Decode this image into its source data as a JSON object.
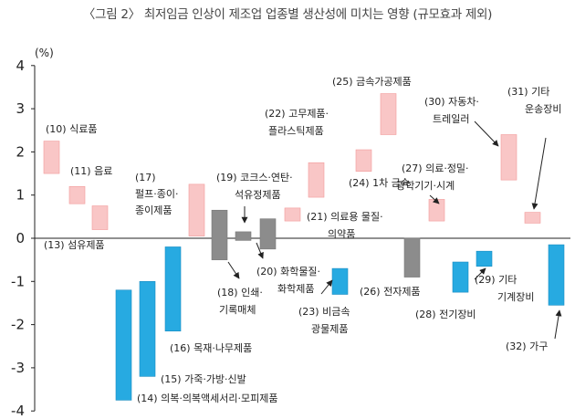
{
  "title": "〈그림 2〉 최저임금 인상이 제조업 업종별 생산성에 미치는 영향 (규모효과 제외)",
  "chart_data": {
    "type": "bar",
    "subtype": "floating-range",
    "ylabel": "(%)",
    "ylim": [
      -4,
      4
    ],
    "yticks": [
      4,
      3,
      2,
      1,
      0,
      -1,
      -2,
      -3,
      -4
    ],
    "colors": {
      "positive": "#f9c6c6",
      "negative": "#27aae1",
      "neutral": "#8c8c8c",
      "positive_border": "#f29b9b",
      "negative_border": "#1a8cc1"
    },
    "series": [
      {
        "id": 10,
        "label": [
          "(10) 식료품"
        ],
        "low": 1.5,
        "high": 2.25,
        "color": "positive"
      },
      {
        "id": 11,
        "label": [
          "(11) 음료"
        ],
        "low": 0.8,
        "high": 1.2,
        "color": "positive"
      },
      {
        "id": 13,
        "label": [
          "(13) 섬유제품"
        ],
        "low": 0.2,
        "high": 0.75,
        "color": "positive"
      },
      {
        "id": 14,
        "label": [
          "(14) 의복·의복액세서리·모피제품"
        ],
        "low": -3.75,
        "high": -1.2,
        "color": "negative"
      },
      {
        "id": 15,
        "label": [
          "(15) 가죽·가방·신발"
        ],
        "low": -3.2,
        "high": -1.0,
        "color": "negative"
      },
      {
        "id": 16,
        "label": [
          "(16) 목재·나무제품"
        ],
        "low": -2.15,
        "high": -0.2,
        "color": "negative"
      },
      {
        "id": 17,
        "label": [
          "(17)",
          "펄프·종이·",
          "종이제품"
        ],
        "low": 0.05,
        "high": 1.25,
        "color": "positive"
      },
      {
        "id": 18,
        "label": [
          "(18) 인쇄·",
          "기록매체"
        ],
        "low": -0.5,
        "high": 0.65,
        "color": "neutral"
      },
      {
        "id": 19,
        "label": [
          "(19) 코크스·연탄·",
          "석유정제품"
        ],
        "low": -0.05,
        "high": 0.15,
        "color": "neutral"
      },
      {
        "id": 20,
        "label": [
          "(20) 화학물질·",
          "화학제품"
        ],
        "low": -0.25,
        "high": 0.45,
        "color": "neutral"
      },
      {
        "id": 21,
        "label": [
          "(21) 의료용 물질·",
          "의약품"
        ],
        "low": 0.4,
        "high": 0.7,
        "color": "positive"
      },
      {
        "id": 22,
        "label": [
          "(22) 고무제품·",
          "플라스틱제품"
        ],
        "low": 0.95,
        "high": 1.75,
        "color": "positive"
      },
      {
        "id": 23,
        "label": [
          "(23) 비금속",
          "광물제품"
        ],
        "low": -1.3,
        "high": -0.7,
        "color": "negative"
      },
      {
        "id": 24,
        "label": [
          "(24) 1차 금속"
        ],
        "low": 1.55,
        "high": 2.05,
        "color": "positive"
      },
      {
        "id": 25,
        "label": [
          "(25) 금속가공제품"
        ],
        "low": 2.4,
        "high": 3.35,
        "color": "positive"
      },
      {
        "id": 26,
        "label": [
          "(26) 전자제품"
        ],
        "low": -0.9,
        "high": 0.0,
        "color": "neutral"
      },
      {
        "id": 27,
        "label": [
          "(27) 의료·정밀·",
          "광학기기·시계"
        ],
        "low": 0.4,
        "high": 0.9,
        "color": "positive"
      },
      {
        "id": 28,
        "label": [
          "(28) 전기장비"
        ],
        "low": -1.25,
        "high": -0.55,
        "color": "negative"
      },
      {
        "id": 29,
        "label": [
          "(29) 기타",
          "기계장비"
        ],
        "low": -0.65,
        "high": -0.3,
        "color": "negative"
      },
      {
        "id": 30,
        "label": [
          "(30) 자동차·",
          "트레일러"
        ],
        "low": 1.35,
        "high": 2.4,
        "color": "positive"
      },
      {
        "id": 31,
        "label": [
          "(31) 기타",
          "운송장비"
        ],
        "low": 0.35,
        "high": 0.6,
        "color": "positive"
      },
      {
        "id": 32,
        "label": [
          "(32) 가구"
        ],
        "low": -1.55,
        "high": -0.15,
        "color": "negative"
      }
    ]
  }
}
